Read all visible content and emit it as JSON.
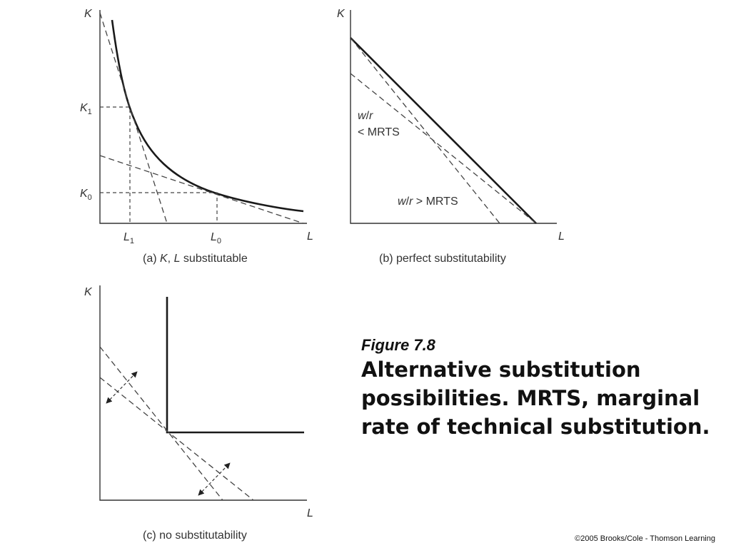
{
  "figure": {
    "number": "Figure 7.8",
    "title": "Alternative substitution possibilities. MRTS, marginal rate of technical substitution."
  },
  "copyright": "©2005 Brooks/Cole - Thomson Learning",
  "panels": {
    "a": {
      "caption_prefix": "(a) ",
      "caption_k": "K",
      "caption_mid": ", ",
      "caption_l": "L",
      "caption_suffix": " substitutable",
      "y_axis": "K",
      "x_axis": "L",
      "k1_base": "K",
      "k1_sub": "1",
      "k0_base": "K",
      "k0_sub": "0",
      "l1_base": "L",
      "l1_sub": "1",
      "l0_base": "L",
      "l0_sub": "0"
    },
    "b": {
      "caption": "(b) perfect substitutability",
      "y_axis": "K",
      "x_axis": "L",
      "label_lt_w": "w",
      "label_lt_slash": "/",
      "label_lt_r": "r",
      "label_lt_line2": "< MRTS",
      "label_gt_w": "w",
      "label_gt_slash": "/",
      "label_gt_r": "r",
      "label_gt_rest": " > MRTS"
    },
    "c": {
      "caption": "(c) no substitutability",
      "y_axis": "K",
      "x_axis": "L"
    }
  }
}
